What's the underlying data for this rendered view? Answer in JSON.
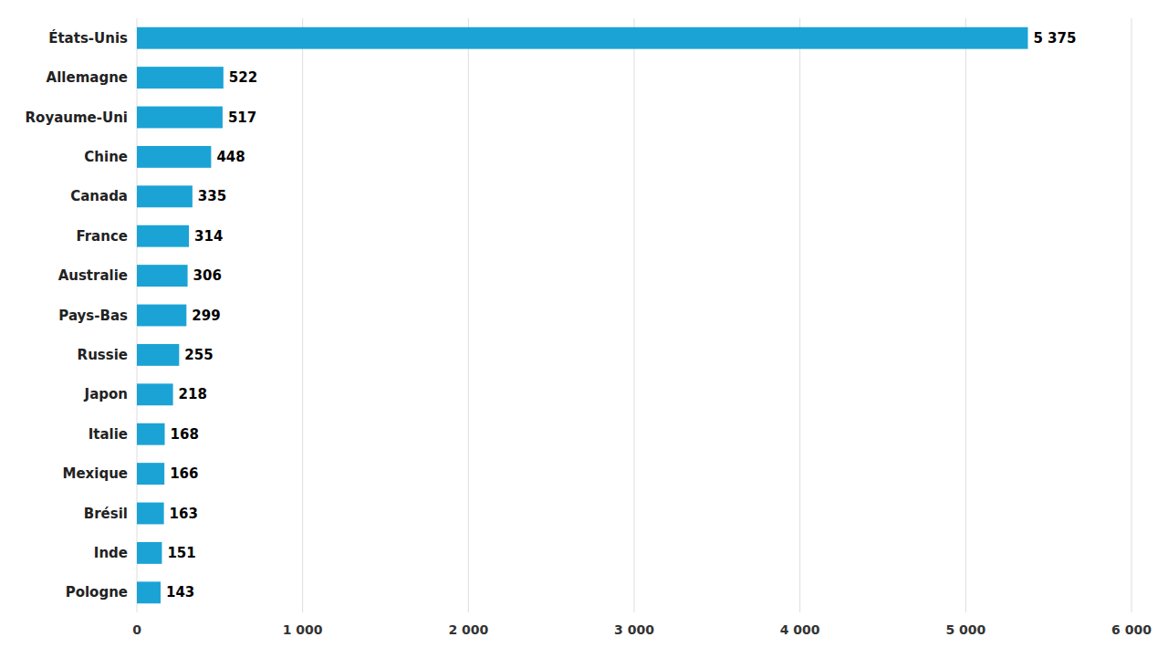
{
  "chart_data": {
    "type": "bar",
    "orientation": "horizontal",
    "categories": [
      "États-Unis",
      "Allemagne",
      "Royaume-Uni",
      "Chine",
      "Canada",
      "France",
      "Australie",
      "Pays-Bas",
      "Russie",
      "Japon",
      "Italie",
      "Mexique",
      "Brésil",
      "Inde",
      "Pologne"
    ],
    "values": [
      5375,
      522,
      517,
      448,
      335,
      314,
      306,
      299,
      255,
      218,
      168,
      166,
      163,
      151,
      143
    ],
    "value_labels": [
      "5 375",
      "522",
      "517",
      "448",
      "335",
      "314",
      "306",
      "299",
      "255",
      "218",
      "168",
      "166",
      "163",
      "151",
      "143"
    ],
    "color": "#1ba3d5",
    "xlim": [
      0,
      6000
    ],
    "xticks": [
      0,
      {
        "value": 1000,
        "label": "1 000"
      },
      {
        "value": 2000,
        "label": "2 000"
      },
      {
        "value": 3000,
        "label": "3 000"
      },
      {
        "value": 4000,
        "label": "4 000"
      },
      {
        "value": 5000,
        "label": "5 000"
      },
      {
        "value": 6000,
        "label": "6 000"
      }
    ],
    "grid": true,
    "data_labels": true
  }
}
